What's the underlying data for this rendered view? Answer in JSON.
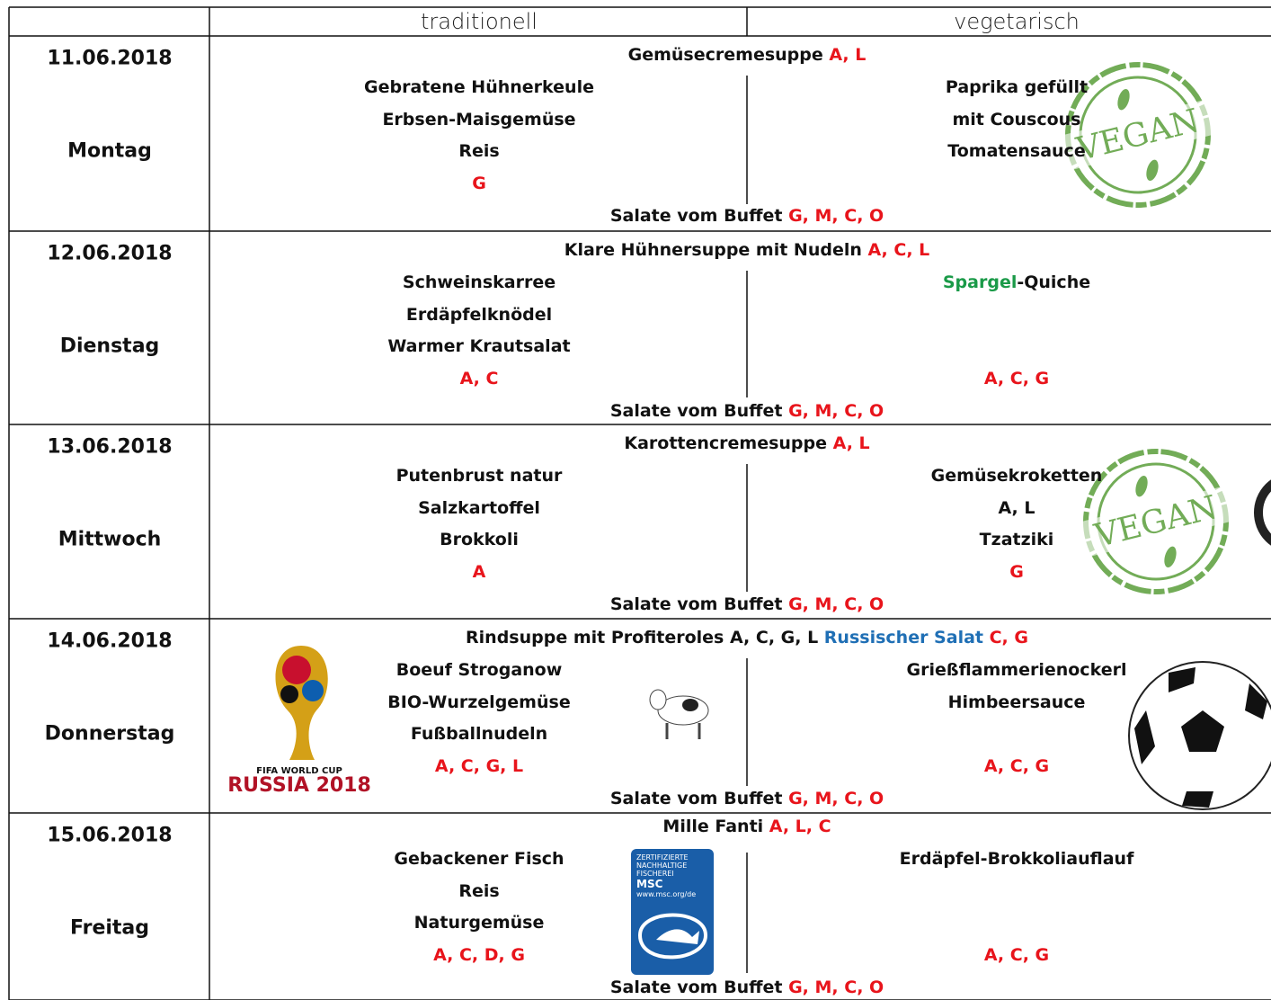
{
  "header": {
    "traditional": "traditionell",
    "vegetarian": "vegetarisch"
  },
  "days": [
    {
      "date": "11.06.2018",
      "weekday": "Montag",
      "soup": [
        {
          "text": "Gemüsecremesuppe "
        },
        {
          "text": "A, L",
          "color": "#e8141b"
        }
      ],
      "traditional": [
        [
          {
            "text": "Gebratene Hühnerkeule"
          }
        ],
        [
          {
            "text": "Erbsen-Maisgemüse"
          }
        ],
        [
          {
            "text": "Reis"
          }
        ],
        [
          {
            "text": "G",
            "color": "#e8141b"
          }
        ]
      ],
      "vegetarian": [
        [
          {
            "text": "Paprika gefüllt"
          }
        ],
        [
          {
            "text": "mit Couscous"
          }
        ],
        [
          {
            "text": "Tomatensauce"
          }
        ],
        null
      ],
      "salad": [
        {
          "text": "Salate vom Buffet "
        },
        {
          "text": "G, M, C, O",
          "color": "#e8141b"
        }
      ]
    },
    {
      "date": "12.06.2018",
      "weekday": "Dienstag",
      "soup": [
        {
          "text": "Klare Hühnersuppe mit Nudeln "
        },
        {
          "text": "A, C, L",
          "color": "#e8141b"
        }
      ],
      "traditional": [
        [
          {
            "text": "Schweinskarree"
          }
        ],
        [
          {
            "text": "Erdäpfelknödel"
          }
        ],
        [
          {
            "text": "Warmer Krautsalat"
          }
        ],
        [
          {
            "text": "A, C",
            "color": "#e8141b"
          }
        ]
      ],
      "vegetarian": [
        [
          {
            "text": "Spargel",
            "color": "#1a9a48"
          },
          {
            "text": "-Quiche"
          }
        ],
        null,
        null,
        [
          {
            "text": "A, C, G",
            "color": "#e8141b"
          }
        ]
      ],
      "salad": [
        {
          "text": "Salate vom Buffet "
        },
        {
          "text": "G, M, C, O",
          "color": "#e8141b"
        }
      ]
    },
    {
      "date": "13.06.2018",
      "weekday": "Mittwoch",
      "soup": [
        {
          "text": "Karottencremesuppe "
        },
        {
          "text": "A, L",
          "color": "#e8141b"
        }
      ],
      "traditional": [
        [
          {
            "text": "Putenbrust natur"
          }
        ],
        [
          {
            "text": "Salzkartoffel"
          }
        ],
        [
          {
            "text": "Brokkoli"
          }
        ],
        [
          {
            "text": "A",
            "color": "#e8141b"
          }
        ]
      ],
      "vegetarian": [
        [
          {
            "text": "Gemüsekroketten"
          }
        ],
        [
          {
            "text": "A, L"
          }
        ],
        [
          {
            "text": "Tzatziki"
          }
        ],
        [
          {
            "text": "G",
            "color": "#e8141b"
          }
        ]
      ],
      "salad": [
        {
          "text": "Salate vom Buffet "
        },
        {
          "text": "G, M, C, O",
          "color": "#e8141b"
        }
      ]
    },
    {
      "date": "14.06.2018",
      "weekday": "Donnerstag",
      "soup": [
        {
          "text": "Rindsuppe mit Profiteroles A, C, G, L "
        },
        {
          "text": "Russischer Salat ",
          "color": "#1f6fb5"
        },
        {
          "text": "C, G",
          "color": "#e8141b"
        }
      ],
      "traditional": [
        [
          {
            "text": "Boeuf Stroganow"
          }
        ],
        [
          {
            "text": "BIO-Wurzelgemüse"
          }
        ],
        [
          {
            "text": "Fußballnudeln"
          }
        ],
        [
          {
            "text": "A, C, G, L",
            "color": "#e8141b"
          }
        ]
      ],
      "vegetarian": [
        [
          {
            "text": "Grießflammerienockerl"
          }
        ],
        [
          {
            "text": "Himbeersauce"
          }
        ],
        null,
        [
          {
            "text": "A, C, G",
            "color": "#e8141b"
          }
        ]
      ],
      "salad": [
        {
          "text": "Salate vom Buffet "
        },
        {
          "text": "G, M, C, O",
          "color": "#e8141b"
        }
      ]
    },
    {
      "date": "15.06.2018",
      "weekday": "Freitag",
      "soup": [
        {
          "text": "Mille Fanti "
        },
        {
          "text": "A, L, C",
          "color": "#e8141b"
        }
      ],
      "traditional": [
        [
          {
            "text": "Gebackener Fisch"
          }
        ],
        [
          {
            "text": "Reis"
          }
        ],
        [
          {
            "text": "Naturgemüse"
          }
        ],
        [
          {
            "text": "A, C, D, G",
            "color": "#e8141b"
          }
        ]
      ],
      "vegetarian": [
        [
          {
            "text": "Erdäpfel-Brokkoliauflauf"
          }
        ],
        null,
        null,
        [
          {
            "text": "A, C, G",
            "color": "#e8141b"
          }
        ]
      ],
      "salad": [
        {
          "text": "Salate vom Buffet "
        },
        {
          "text": "G, M, C, O",
          "color": "#e8141b"
        }
      ]
    }
  ],
  "logos": {
    "vegan": "VEGAN",
    "fifa": [
      "FIFA WORLD CUP",
      "RUSSIA 2018"
    ],
    "msc": [
      "ZERTIFIZIERTE",
      "NACHHALTIGE",
      "FISCHEREI",
      "MSC",
      "www.msc.org/de"
    ]
  }
}
